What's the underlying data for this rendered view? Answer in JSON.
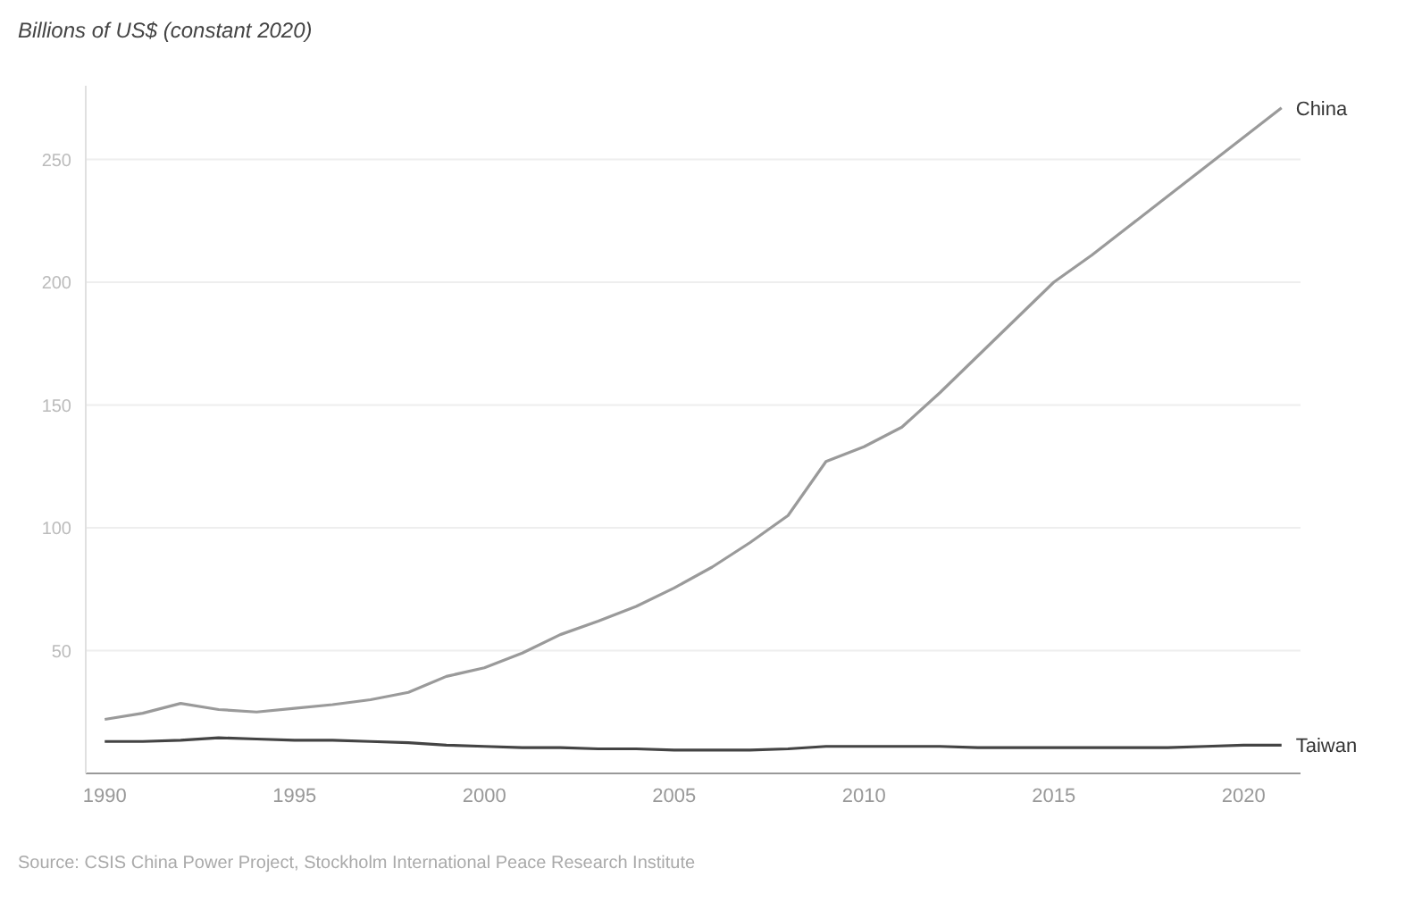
{
  "chart_data": {
    "type": "line",
    "ylabel": "Billions of US$ (constant 2020)",
    "x": [
      1990,
      1991,
      1992,
      1993,
      1994,
      1995,
      1996,
      1997,
      1998,
      1999,
      2000,
      2001,
      2002,
      2003,
      2004,
      2005,
      2006,
      2007,
      2008,
      2009,
      2010,
      2011,
      2012,
      2013,
      2014,
      2015,
      2016,
      2017,
      2018,
      2019,
      2020,
      2021
    ],
    "series": [
      {
        "name": "China",
        "color": "#9a9a9a",
        "values": [
          22,
          24.5,
          28.5,
          26,
          25,
          26.5,
          28,
          30,
          33,
          39.5,
          43,
          49,
          56.5,
          62,
          68,
          75.5,
          84,
          94,
          105,
          127,
          133,
          141,
          155,
          170,
          185,
          200,
          211,
          223,
          235,
          247,
          259,
          271
        ]
      },
      {
        "name": "Taiwan",
        "color": "#444444",
        "values": [
          13,
          13,
          13.5,
          14.5,
          14,
          13.5,
          13.5,
          13,
          12.5,
          11.5,
          11,
          10.5,
          10.5,
          10,
          10,
          9.5,
          9.5,
          9.5,
          10,
          11,
          11,
          11,
          11,
          10.5,
          10.5,
          10.5,
          10.5,
          10.5,
          10.5,
          11,
          11.5,
          11.5
        ]
      }
    ],
    "xlim": [
      1989.5,
      2021.5
    ],
    "xticks": [
      1990,
      1995,
      2000,
      2005,
      2010,
      2015,
      2020
    ],
    "ylim": [
      0,
      280
    ],
    "yticks": [
      50,
      100,
      150,
      200,
      250
    ],
    "grid": "y",
    "legend": false,
    "marker": "none",
    "line_style": "solid",
    "annotations": [
      "Source: CSIS China Power Project, Stockholm International Peace Research Institute"
    ]
  }
}
